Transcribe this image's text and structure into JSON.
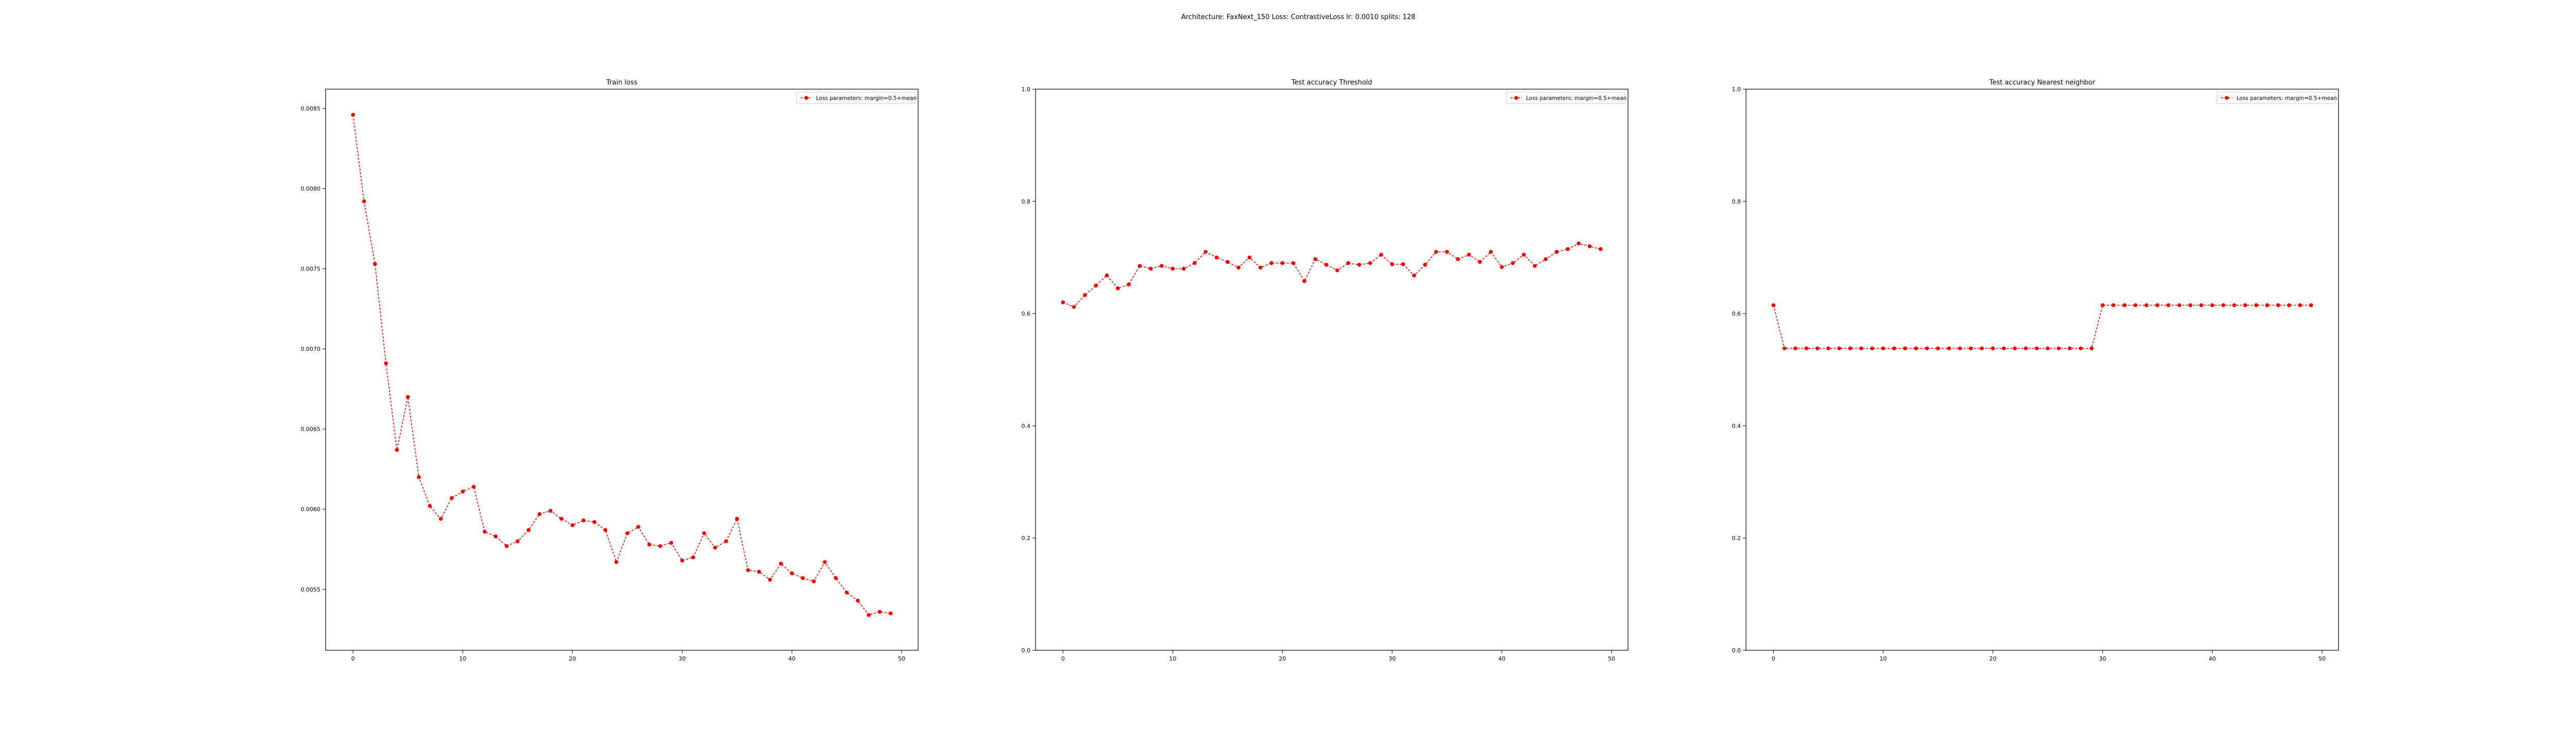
{
  "figure": {
    "suptitle": "Architecture: FaxNext_150 Loss: ContrastiveLoss lr: 0.0010 splits: 128"
  },
  "colors": {
    "series": "#ff0000",
    "axes": "#000000",
    "background": "#ffffff"
  },
  "chart_data": [
    {
      "type": "line",
      "title": "Train loss",
      "xlabel": "",
      "ylabel": "",
      "xlim": [
        -2.5,
        51.5
      ],
      "ylim": [
        0.00512,
        0.00862
      ],
      "xticks": [
        0,
        10,
        20,
        30,
        40,
        50
      ],
      "yticks": [
        0.0055,
        0.006,
        0.0065,
        0.007,
        0.0075,
        0.008,
        0.0085
      ],
      "ytick_labels": [
        "0.0055",
        "0.0060",
        "0.0065",
        "0.0070",
        "0.0075",
        "0.0080",
        "0.0085"
      ],
      "legend": "upper right",
      "grid": false,
      "series": [
        {
          "name": "Loss parameters: margin=0.5+mean",
          "x": [
            0,
            1,
            2,
            3,
            4,
            5,
            6,
            7,
            8,
            9,
            10,
            11,
            12,
            13,
            14,
            15,
            16,
            17,
            18,
            19,
            20,
            21,
            22,
            23,
            24,
            25,
            26,
            27,
            28,
            29,
            30,
            31,
            32,
            33,
            34,
            35,
            36,
            37,
            38,
            39,
            40,
            41,
            42,
            43,
            44,
            45,
            46,
            47,
            48,
            49
          ],
          "y": [
            0.00846,
            0.00792,
            0.00753,
            0.00691,
            0.00637,
            0.0067,
            0.0062,
            0.00602,
            0.00594,
            0.00607,
            0.00611,
            0.00614,
            0.00586,
            0.00583,
            0.00577,
            0.0058,
            0.00587,
            0.00597,
            0.00599,
            0.00594,
            0.0059,
            0.00593,
            0.00592,
            0.00587,
            0.00567,
            0.00585,
            0.00589,
            0.00578,
            0.00577,
            0.00579,
            0.00568,
            0.0057,
            0.00585,
            0.00576,
            0.0058,
            0.00594,
            0.00562,
            0.00561,
            0.00556,
            0.00566,
            0.0056,
            0.00557,
            0.00555,
            0.00567,
            0.00557,
            0.00548,
            0.00543,
            0.00534,
            0.00536,
            0.00535
          ]
        }
      ]
    },
    {
      "type": "line",
      "title": "Test accuracy Threshold",
      "xlabel": "",
      "ylabel": "",
      "xlim": [
        -2.5,
        51.5
      ],
      "ylim": [
        0.0,
        1.0
      ],
      "xticks": [
        0,
        10,
        20,
        30,
        40,
        50
      ],
      "yticks": [
        0.0,
        0.2,
        0.4,
        0.6,
        0.8,
        1.0
      ],
      "ytick_labels": [
        "0.0",
        "0.2",
        "0.4",
        "0.6",
        "0.8",
        "1.0"
      ],
      "legend": "upper right",
      "grid": false,
      "series": [
        {
          "name": "Loss parameters: margin=0.5+mean",
          "x": [
            0,
            1,
            2,
            3,
            4,
            5,
            6,
            7,
            8,
            9,
            10,
            11,
            12,
            13,
            14,
            15,
            16,
            17,
            18,
            19,
            20,
            21,
            22,
            23,
            24,
            25,
            26,
            27,
            28,
            29,
            30,
            31,
            32,
            33,
            34,
            35,
            36,
            37,
            38,
            39,
            40,
            41,
            42,
            43,
            44,
            45,
            46,
            47,
            48,
            49
          ],
          "y": [
            0.62,
            0.612,
            0.633,
            0.65,
            0.668,
            0.645,
            0.652,
            0.685,
            0.68,
            0.685,
            0.68,
            0.68,
            0.69,
            0.71,
            0.7,
            0.692,
            0.682,
            0.7,
            0.682,
            0.69,
            0.69,
            0.69,
            0.658,
            0.697,
            0.687,
            0.677,
            0.69,
            0.687,
            0.69,
            0.705,
            0.688,
            0.688,
            0.668,
            0.687,
            0.71,
            0.71,
            0.697,
            0.705,
            0.692,
            0.71,
            0.683,
            0.69,
            0.705,
            0.685,
            0.697,
            0.71,
            0.715,
            0.725,
            0.72,
            0.715
          ]
        }
      ]
    },
    {
      "type": "line",
      "title": "Test accuracy Nearest neighbor",
      "xlabel": "",
      "ylabel": "",
      "xlim": [
        -2.5,
        51.5
      ],
      "ylim": [
        0.0,
        1.0
      ],
      "xticks": [
        0,
        10,
        20,
        30,
        40,
        50
      ],
      "yticks": [
        0.0,
        0.2,
        0.4,
        0.6,
        0.8,
        1.0
      ],
      "ytick_labels": [
        "0.0",
        "0.2",
        "0.4",
        "0.6",
        "0.8",
        "1.0"
      ],
      "legend": "upper right",
      "grid": false,
      "series": [
        {
          "name": "Loss parameters: margin=0.5+mean",
          "x": [
            0,
            1,
            2,
            3,
            4,
            5,
            6,
            7,
            8,
            9,
            10,
            11,
            12,
            13,
            14,
            15,
            16,
            17,
            18,
            19,
            20,
            21,
            22,
            23,
            24,
            25,
            26,
            27,
            28,
            29,
            30,
            31,
            32,
            33,
            34,
            35,
            36,
            37,
            38,
            39,
            40,
            41,
            42,
            43,
            44,
            45,
            46,
            47,
            48,
            49
          ],
          "y": [
            0.615,
            0.538,
            0.538,
            0.538,
            0.538,
            0.538,
            0.538,
            0.538,
            0.538,
            0.538,
            0.538,
            0.538,
            0.538,
            0.538,
            0.538,
            0.538,
            0.538,
            0.538,
            0.538,
            0.538,
            0.538,
            0.538,
            0.538,
            0.538,
            0.538,
            0.538,
            0.538,
            0.538,
            0.538,
            0.538,
            0.615,
            0.615,
            0.615,
            0.615,
            0.615,
            0.615,
            0.615,
            0.615,
            0.615,
            0.615,
            0.615,
            0.615,
            0.615,
            0.615,
            0.615,
            0.615,
            0.615,
            0.615,
            0.615,
            0.615
          ]
        }
      ]
    }
  ]
}
